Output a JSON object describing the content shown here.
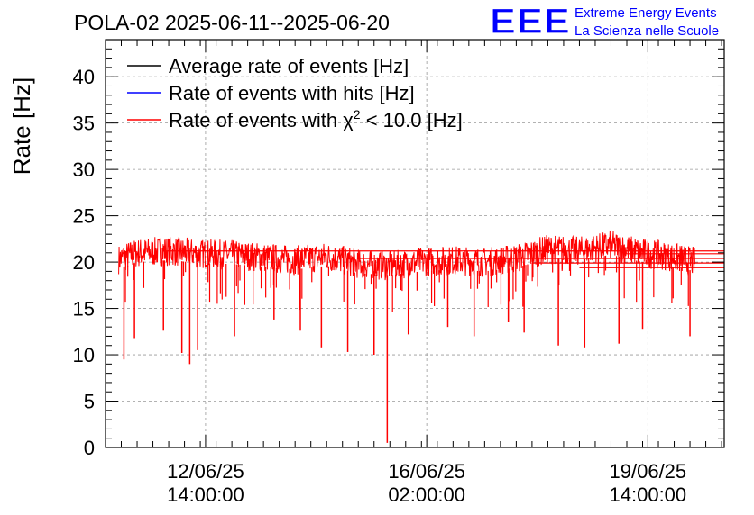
{
  "header": {
    "title": "POLA-02 2025-06-11--2025-06-20",
    "logo_text": "EEE",
    "logo_line1": "Extreme Energy Events",
    "logo_line2": "La Scienza nelle Scuole"
  },
  "colors": {
    "average": "#000000",
    "hits": "#0000ff",
    "chi2": "#ff0000",
    "logo": "#0000ff",
    "grid": "#999999"
  },
  "chart_data": {
    "type": "line",
    "ylabel": "Rate [Hz]",
    "xlabel": "",
    "ylim": [
      0,
      44
    ],
    "yticks": [
      0,
      5,
      10,
      15,
      20,
      25,
      30,
      35,
      40
    ],
    "xlim": [
      "2025-06-11 00:00",
      "2025-06-20 19:00"
    ],
    "xticks": [
      {
        "t": "2025-06-12 14:00",
        "label_date": "12/06/25",
        "label_time": "14:00:00"
      },
      {
        "t": "2025-06-16 02:00",
        "label_date": "16/06/25",
        "label_time": "02:00:00"
      },
      {
        "t": "2025-06-19 14:00",
        "label_date": "19/06/25",
        "label_time": "14:00:00"
      }
    ],
    "grid": true,
    "legend": {
      "placement": "top-left",
      "entries": [
        {
          "name": "Average rate of events [Hz]",
          "color": "#000000"
        },
        {
          "name": "Rate of events with hits [Hz]",
          "color": "#0000ff"
        },
        {
          "name_prefix": "Rate of events with ",
          "name_symbol": "χ",
          "name_sup": "2",
          "name_suffix": " < 10.0 [Hz]",
          "color": "#ff0000"
        }
      ]
    },
    "series": [
      {
        "name": "Rate of events with χ2 < 10.0 [Hz]",
        "color": "#ff0000",
        "x": [
          "2025-06-11 05:00",
          "2025-06-11 12:00",
          "2025-06-12 00:00",
          "2025-06-12 12:00",
          "2025-06-13 00:00",
          "2025-06-13 12:00",
          "2025-06-14 00:00",
          "2025-06-14 12:00",
          "2025-06-15 00:00",
          "2025-06-15 12:00",
          "2025-06-16 00:00",
          "2025-06-16 12:00",
          "2025-06-17 00:00",
          "2025-06-17 12:00",
          "2025-06-18 00:00",
          "2025-06-18 12:00",
          "2025-06-19 00:00",
          "2025-06-19 12:00",
          "2025-06-20 00:00",
          "2025-06-20 08:00"
        ],
        "values": [
          20.3,
          21.0,
          21.2,
          20.9,
          20.8,
          20.5,
          20.2,
          20.6,
          19.8,
          19.6,
          20.0,
          20.2,
          20.0,
          20.4,
          21.4,
          21.2,
          21.8,
          21.0,
          20.5,
          20.0
        ],
        "noise_band": 1.6,
        "dips": [
          {
            "t": "2025-06-11 07:00",
            "v": 9.5
          },
          {
            "t": "2025-06-11 11:00",
            "v": 11.8
          },
          {
            "t": "2025-06-11 22:00",
            "v": 12.6
          },
          {
            "t": "2025-06-12 05:00",
            "v": 10.2
          },
          {
            "t": "2025-06-12 08:00",
            "v": 9.0
          },
          {
            "t": "2025-06-12 11:00",
            "v": 10.5
          },
          {
            "t": "2025-06-13 01:00",
            "v": 12.0
          },
          {
            "t": "2025-06-13 16:00",
            "v": 13.8
          },
          {
            "t": "2025-06-14 02:00",
            "v": 12.6
          },
          {
            "t": "2025-06-14 10:00",
            "v": 10.8
          },
          {
            "t": "2025-06-14 20:00",
            "v": 10.3
          },
          {
            "t": "2025-06-15 06:00",
            "v": 10.0
          },
          {
            "t": "2025-06-15 11:00",
            "v": 0.5
          },
          {
            "t": "2025-06-15 19:00",
            "v": 12.2
          },
          {
            "t": "2025-06-16 10:00",
            "v": 13.0
          },
          {
            "t": "2025-06-16 20:00",
            "v": 12.0
          },
          {
            "t": "2025-06-17 09:00",
            "v": 13.5
          },
          {
            "t": "2025-06-17 15:00",
            "v": 12.4
          },
          {
            "t": "2025-06-18 04:00",
            "v": 11.0
          },
          {
            "t": "2025-06-18 14:00",
            "v": 10.8
          },
          {
            "t": "2025-06-19 03:00",
            "v": 11.2
          },
          {
            "t": "2025-06-19 12:00",
            "v": 12.8
          },
          {
            "t": "2025-06-20 06:00",
            "v": 12.0
          }
        ],
        "tail_lines": [
          {
            "t_from": "2025-06-11 22:00",
            "v": 21.2
          },
          {
            "t_from": "2025-06-15 00:00",
            "v": 20.4
          },
          {
            "t_from": "2025-06-17 18:00",
            "v": 19.9
          },
          {
            "t_from": "2025-06-18 12:00",
            "v": 19.4
          },
          {
            "t_from": "2025-06-19 06:00",
            "v": 20.9
          }
        ]
      }
    ]
  }
}
